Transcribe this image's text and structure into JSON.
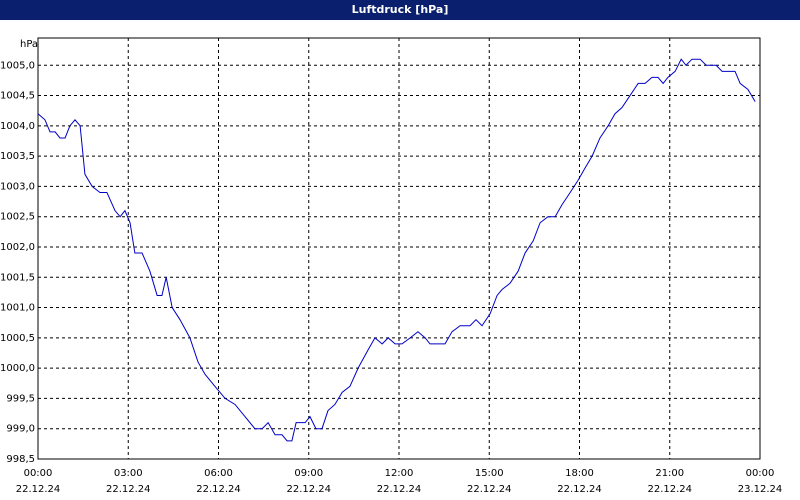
{
  "chart_data": {
    "type": "line",
    "title": "Luftdruck [hPa]",
    "y_unit": "hPa",
    "xlim": [
      0,
      24
    ],
    "ylim": [
      998.5,
      1005.45
    ],
    "xticks": [
      {
        "value": 0,
        "label": "00:00"
      },
      {
        "value": 3,
        "label": "03:00"
      },
      {
        "value": 6,
        "label": "06:00"
      },
      {
        "value": 9,
        "label": "09:00"
      },
      {
        "value": 12,
        "label": "12:00"
      },
      {
        "value": 15,
        "label": "15:00"
      },
      {
        "value": 18,
        "label": "18:00"
      },
      {
        "value": 21,
        "label": "21:00"
      },
      {
        "value": 24,
        "label": "00:00"
      }
    ],
    "xtick_dates": [
      "22.12.24",
      "22.12.24",
      "22.12.24",
      "22.12.24",
      "22.12.24",
      "22.12.24",
      "22.12.24",
      "22.12.24",
      "23.12.24"
    ],
    "yticks": [
      {
        "value": 998.5,
        "label": "998,5"
      },
      {
        "value": 999.0,
        "label": "999,0"
      },
      {
        "value": 999.5,
        "label": "999,5"
      },
      {
        "value": 1000.0,
        "label": "1000,0"
      },
      {
        "value": 1000.5,
        "label": "1000,5"
      },
      {
        "value": 1001.0,
        "label": "1001,0"
      },
      {
        "value": 1001.5,
        "label": "1001,5"
      },
      {
        "value": 1002.0,
        "label": "1002,0"
      },
      {
        "value": 1002.5,
        "label": "1002,5"
      },
      {
        "value": 1003.0,
        "label": "1003,0"
      },
      {
        "value": 1003.5,
        "label": "1003,5"
      },
      {
        "value": 1004.0,
        "label": "1004,0"
      },
      {
        "value": 1004.5,
        "label": "1004,5"
      },
      {
        "value": 1005.0,
        "label": "1005,0"
      }
    ],
    "grid": true,
    "series": [
      {
        "name": "Luftdruck",
        "color": "#0000c8",
        "x": [
          0,
          0.23,
          0.4,
          0.57,
          0.73,
          0.9,
          1.06,
          1.23,
          1.4,
          1.56,
          1.8,
          2.06,
          2.29,
          2.56,
          2.73,
          2.89,
          3.06,
          3.22,
          3.46,
          3.72,
          3.96,
          4.12,
          4.26,
          4.46,
          4.72,
          5.05,
          5.32,
          5.55,
          5.88,
          6.22,
          6.55,
          6.88,
          7.21,
          7.45,
          7.65,
          7.88,
          8.11,
          8.28,
          8.44,
          8.58,
          8.88,
          9.04,
          9.24,
          9.44,
          9.64,
          9.87,
          10.11,
          10.37,
          10.64,
          10.97,
          11.2,
          11.44,
          11.64,
          11.87,
          12.1,
          12.37,
          12.63,
          12.87,
          13.03,
          13.53,
          13.76,
          14.03,
          14.36,
          14.56,
          14.76,
          15.03,
          15.26,
          15.43,
          15.69,
          15.96,
          16.19,
          16.46,
          16.69,
          16.95,
          17.19,
          17.42,
          17.69,
          17.95,
          18.18,
          18.42,
          18.68,
          18.95,
          19.18,
          19.41,
          19.68,
          19.95,
          20.18,
          20.41,
          20.61,
          20.78,
          20.94,
          21.18,
          21.38,
          21.54,
          21.74,
          22.01,
          22.21,
          22.54,
          22.74,
          23.17,
          23.34,
          23.6,
          23.84
        ],
        "values": [
          1004.2,
          1004.1,
          1003.9,
          1003.9,
          1003.8,
          1003.8,
          1004.0,
          1004.1,
          1004.0,
          1003.2,
          1003.0,
          1002.9,
          1002.9,
          1002.6,
          1002.5,
          1002.6,
          1002.4,
          1001.9,
          1001.9,
          1001.6,
          1001.2,
          1001.2,
          1001.5,
          1001.0,
          1000.8,
          1000.5,
          1000.1,
          999.9,
          999.7,
          999.5,
          999.4,
          999.2,
          999.0,
          999.0,
          999.1,
          998.9,
          998.9,
          998.8,
          998.8,
          999.1,
          999.1,
          999.2,
          999.0,
          999.0,
          999.3,
          999.4,
          999.6,
          999.7,
          1000.0,
          1000.3,
          1000.5,
          1000.4,
          1000.5,
          1000.4,
          1000.4,
          1000.5,
          1000.6,
          1000.5,
          1000.4,
          1000.4,
          1000.6,
          1000.7,
          1000.7,
          1000.8,
          1000.7,
          1000.9,
          1001.2,
          1001.3,
          1001.4,
          1001.6,
          1001.9,
          1002.1,
          1002.4,
          1002.5,
          1002.5,
          1002.7,
          1002.9,
          1003.1,
          1003.3,
          1003.5,
          1003.8,
          1004.0,
          1004.2,
          1004.3,
          1004.5,
          1004.7,
          1004.7,
          1004.8,
          1004.8,
          1004.7,
          1004.8,
          1004.9,
          1005.1,
          1005.0,
          1005.1,
          1005.1,
          1005.0,
          1005.0,
          1004.9,
          1004.9,
          1004.7,
          1004.6,
          1004.4
        ]
      }
    ]
  }
}
